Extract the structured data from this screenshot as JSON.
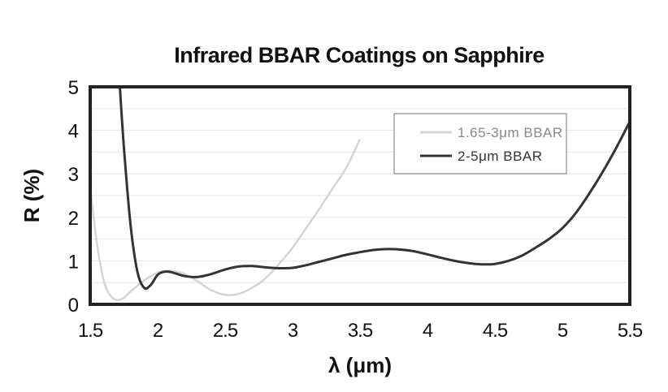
{
  "chart_data": {
    "type": "line",
    "title": "Infrared BBAR Coatings on Sapphire",
    "xlabel": "λ (μm)",
    "ylabel": "R (%)",
    "xlim": [
      1.5,
      5.5
    ],
    "ylim": [
      0,
      5
    ],
    "xticks": [
      "1.5",
      "2",
      "2.5",
      "3",
      "3.5",
      "4",
      "4.5",
      "5",
      "5.5"
    ],
    "yticks": [
      "0",
      "1",
      "2",
      "3",
      "4",
      "5"
    ],
    "grid": true,
    "legend_position": "top-right",
    "series": [
      {
        "name": "1.65-3μm BBAR",
        "color": "#d4d4d4",
        "points": [
          [
            1.5,
            2.7
          ],
          [
            1.55,
            1.4
          ],
          [
            1.6,
            0.55
          ],
          [
            1.65,
            0.2
          ],
          [
            1.7,
            0.1
          ],
          [
            1.75,
            0.15
          ],
          [
            1.8,
            0.3
          ],
          [
            1.9,
            0.55
          ],
          [
            2.0,
            0.73
          ],
          [
            2.1,
            0.77
          ],
          [
            2.2,
            0.7
          ],
          [
            2.3,
            0.52
          ],
          [
            2.4,
            0.32
          ],
          [
            2.5,
            0.22
          ],
          [
            2.6,
            0.24
          ],
          [
            2.7,
            0.38
          ],
          [
            2.8,
            0.6
          ],
          [
            2.9,
            0.93
          ],
          [
            3.0,
            1.3
          ],
          [
            3.1,
            1.75
          ],
          [
            3.2,
            2.2
          ],
          [
            3.3,
            2.68
          ],
          [
            3.4,
            3.15
          ],
          [
            3.5,
            3.8
          ]
        ]
      },
      {
        "name": "2-5μm BBAR",
        "color": "#333333",
        "points": [
          [
            1.72,
            5.0
          ],
          [
            1.75,
            3.6
          ],
          [
            1.8,
            1.8
          ],
          [
            1.85,
            0.75
          ],
          [
            1.9,
            0.38
          ],
          [
            1.95,
            0.45
          ],
          [
            2.0,
            0.68
          ],
          [
            2.05,
            0.75
          ],
          [
            2.1,
            0.74
          ],
          [
            2.2,
            0.65
          ],
          [
            2.3,
            0.63
          ],
          [
            2.4,
            0.7
          ],
          [
            2.5,
            0.8
          ],
          [
            2.6,
            0.87
          ],
          [
            2.7,
            0.88
          ],
          [
            2.8,
            0.85
          ],
          [
            2.9,
            0.83
          ],
          [
            3.0,
            0.84
          ],
          [
            3.1,
            0.9
          ],
          [
            3.2,
            0.98
          ],
          [
            3.3,
            1.06
          ],
          [
            3.4,
            1.14
          ],
          [
            3.5,
            1.2
          ],
          [
            3.6,
            1.25
          ],
          [
            3.7,
            1.27
          ],
          [
            3.8,
            1.26
          ],
          [
            3.9,
            1.22
          ],
          [
            4.0,
            1.15
          ],
          [
            4.1,
            1.07
          ],
          [
            4.2,
            1.0
          ],
          [
            4.3,
            0.95
          ],
          [
            4.4,
            0.92
          ],
          [
            4.5,
            0.93
          ],
          [
            4.6,
            1.0
          ],
          [
            4.7,
            1.12
          ],
          [
            4.8,
            1.3
          ],
          [
            4.9,
            1.5
          ],
          [
            5.0,
            1.75
          ],
          [
            5.1,
            2.1
          ],
          [
            5.2,
            2.55
          ],
          [
            5.3,
            3.05
          ],
          [
            5.4,
            3.6
          ],
          [
            5.5,
            4.2
          ]
        ]
      }
    ]
  }
}
